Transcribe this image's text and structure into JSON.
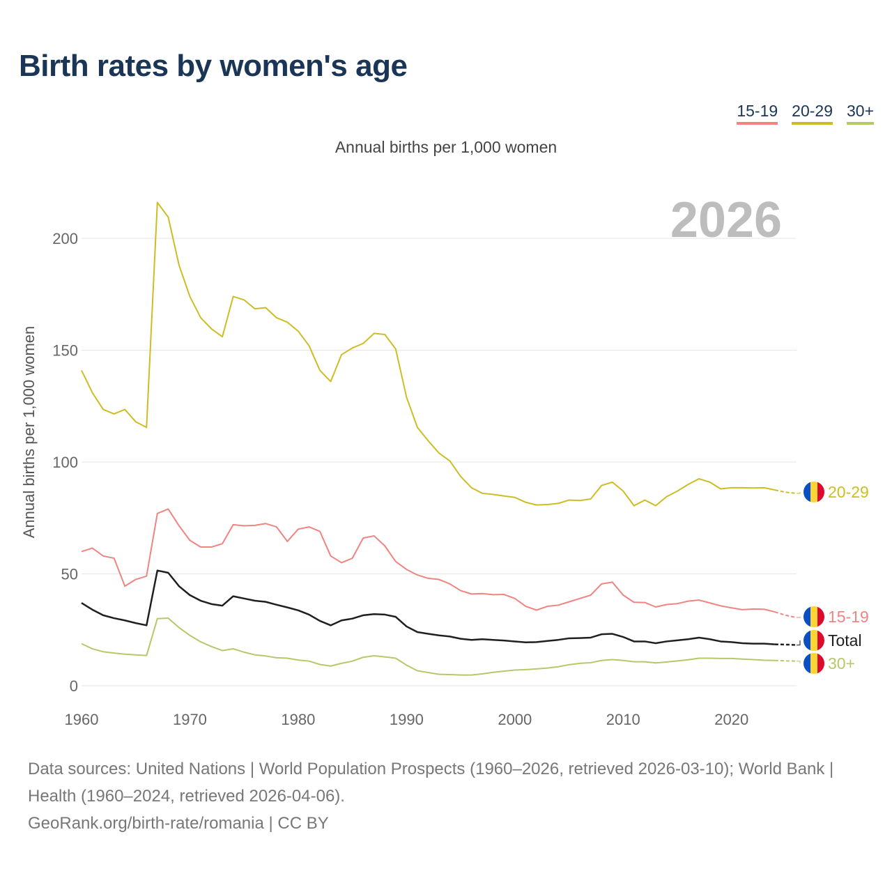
{
  "title": "Birth rates by women's age",
  "legend": [
    {
      "label": "15-19",
      "color": "#ef8480"
    },
    {
      "label": "20-29",
      "color": "#cdbd24"
    },
    {
      "label": "30+",
      "color": "#b5c86a"
    }
  ],
  "year_label": "2026",
  "footer": {
    "sources": "Data sources: United Nations | World Population Prospects (1960–2026, retrieved 2026-03-10); World Bank | Health (1960–2024, retrieved 2026-04-06).",
    "credit": "GeoRank.org/birth-rate/romania | CC BY"
  },
  "chart_data": {
    "type": "line",
    "title": "Birth rates by women's age",
    "subtitle": "Annual births per 1,000 women",
    "xlabel": "",
    "ylabel": "Annual births per 1,000 women",
    "xlim": [
      1960,
      2026
    ],
    "ylim": [
      0,
      220
    ],
    "xticks": [
      1960,
      1970,
      1980,
      1990,
      2000,
      2010,
      2020
    ],
    "yticks": [
      0,
      50,
      100,
      150,
      200
    ],
    "grid": true,
    "legend_position": "top-right",
    "projected_from": 2024,
    "x_start": 1960,
    "series": [
      {
        "name": "20-29",
        "end_label": "20-29",
        "color": "#cdbd24",
        "values": [
          141,
          131,
          123.5,
          121.5,
          123.5,
          118,
          115.5,
          216,
          209.5,
          188,
          174,
          164.5,
          159.5,
          156,
          174,
          172.5,
          168.5,
          169,
          164.5,
          162.5,
          158.5,
          152,
          141,
          136,
          148,
          151,
          153,
          157.5,
          157,
          150.5,
          129,
          115.5,
          109.5,
          104,
          100.5,
          93.5,
          88.5,
          86,
          85.5,
          84.8,
          84.2,
          82,
          80.8,
          81,
          81.5,
          83,
          82.8,
          83.5,
          89.5,
          91,
          87,
          80.5,
          83,
          80.5,
          84.5,
          87,
          90,
          92.5,
          91,
          88,
          88.5,
          88.5,
          88.4,
          88.5,
          87.5,
          86.5,
          86
        ]
      },
      {
        "name": "15-19",
        "end_label": "15-19",
        "color": "#ef8480",
        "values": [
          60,
          61.5,
          58,
          57,
          44.5,
          47.5,
          49,
          77,
          79,
          71.5,
          65,
          62,
          62,
          63.5,
          72,
          71.5,
          71.7,
          72.5,
          71,
          64.5,
          70,
          71,
          69,
          58,
          55,
          57,
          66,
          67,
          62.5,
          55.5,
          52,
          49.5,
          48,
          47.5,
          45.5,
          42.5,
          41,
          41.2,
          40.7,
          40.8,
          39,
          35.5,
          33.8,
          35.5,
          36,
          37.5,
          39,
          40.5,
          45.5,
          46.3,
          40.5,
          37.3,
          37.2,
          35.2,
          36.3,
          36.7,
          37.8,
          38.3,
          37,
          35.7,
          34.8,
          34,
          34.3,
          34.2,
          33,
          31.5,
          30.5
        ]
      },
      {
        "name": "Total",
        "end_label": "Total",
        "color": "#1f1f1f",
        "values": [
          37,
          34,
          31.5,
          30.2,
          29.2,
          28,
          27,
          51.5,
          50.5,
          44.5,
          40.5,
          38,
          36.5,
          35.8,
          40,
          39,
          38,
          37.5,
          36.2,
          35,
          33.7,
          31.8,
          29,
          27,
          29.2,
          30,
          31.5,
          32,
          31.8,
          30.8,
          26.5,
          24,
          23.2,
          22.5,
          22,
          21,
          20.5,
          20.8,
          20.5,
          20.2,
          19.8,
          19.4,
          19.5,
          20,
          20.5,
          21.2,
          21.3,
          21.5,
          23,
          23.2,
          21.8,
          19.8,
          19.8,
          19,
          19.8,
          20.3,
          20.8,
          21.5,
          20.8,
          19.8,
          19.5,
          19,
          18.8,
          18.8,
          18.5,
          18.4,
          18.2
        ]
      },
      {
        "name": "30+",
        "end_label": "30+",
        "color": "#b5c86a",
        "values": [
          18.8,
          16.5,
          15.2,
          14.6,
          14.1,
          13.8,
          13.5,
          30,
          30.2,
          26,
          22.5,
          19.6,
          17.5,
          15.7,
          16.5,
          15,
          13.8,
          13.3,
          12.5,
          12.3,
          11.5,
          11,
          9.5,
          8.8,
          10,
          11,
          12.7,
          13.4,
          12.9,
          12.3,
          9.2,
          6.7,
          5.9,
          5.1,
          5,
          4.8,
          4.8,
          5.3,
          6,
          6.5,
          7,
          7.2,
          7.5,
          7.9,
          8.5,
          9.4,
          10,
          10.3,
          11.3,
          11.7,
          11.3,
          10.7,
          10.7,
          10.2,
          10.6,
          11.1,
          11.6,
          12.3,
          12.3,
          12.2,
          12.2,
          11.9,
          11.7,
          11.4,
          11.3,
          11.1,
          11
        ]
      }
    ]
  }
}
